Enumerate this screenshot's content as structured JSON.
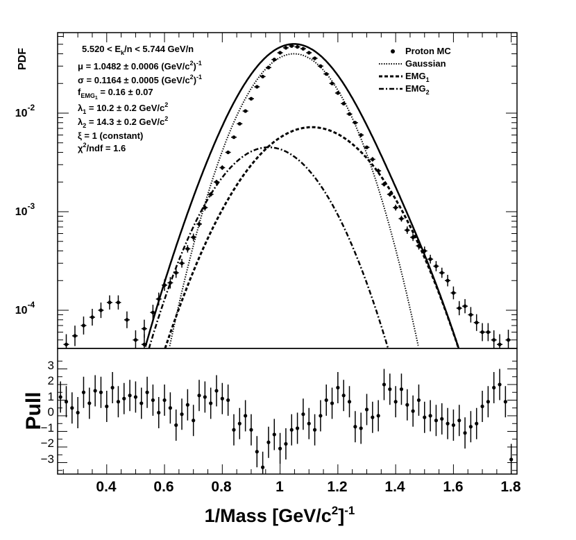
{
  "chart_data": [
    {
      "type": "scatter",
      "title": "",
      "ylabel": "PDF",
      "yscale": "log",
      "ylim": [
        4e-05,
        0.06
      ],
      "xlim": [
        0.23,
        1.82
      ],
      "y_ticks": [
        {
          "mantissa": "10",
          "exp": "-2",
          "value": 0.01
        },
        {
          "mantissa": "10",
          "exp": "-3",
          "value": 0.001
        },
        {
          "mantissa": "10",
          "exp": "-4",
          "value": 0.0001
        }
      ],
      "params": [
        {
          "pre": "5.520 < E",
          "sub": "k",
          "post": "/n < 5.744 GeV/n"
        },
        {
          "pre": "μ = 1.0482 ± 0.0006 (GeV/c",
          "sup": "2",
          "post": ")",
          "sup2": "-1"
        },
        {
          "pre": "σ = 0.1164 ± 0.0005 (GeV/c",
          "sup": "2",
          "post": ")",
          "sup2": "-1"
        },
        {
          "pre": "f",
          "sub": "EMG",
          "subsub": "1",
          "post": " = 0.16 ± 0.07"
        },
        {
          "pre": "λ",
          "sub": "1",
          "post": " = 10.2 ± 0.2 GeV/c",
          "sup2": "2"
        },
        {
          "pre": "λ",
          "sub": "2",
          "post": " = 14.3 ± 0.2 GeV/c",
          "sup2": "2"
        },
        {
          "pre": "ξ = 1 (constant)"
        },
        {
          "pre": "χ",
          "sup": "2",
          "post": "/ndf = 1.6"
        }
      ],
      "legend": {
        "placement": "top-right",
        "entries": [
          {
            "label": "Proton MC",
            "style": "marker"
          },
          {
            "label": "Gaussian",
            "style": "dotted"
          },
          {
            "label": "EMG",
            "sub": "1",
            "style": "dashed"
          },
          {
            "label": "EMG",
            "sub": "2",
            "style": "dashdot"
          }
        ]
      },
      "model": {
        "mu": 1.0482,
        "sigma": 0.1164,
        "gaussian_peak": 0.04,
        "emg1_peak": 0.0072,
        "emg1_center": 1.11,
        "emg1_width": 0.158,
        "emg2_peak": 0.0045,
        "emg2_center": 0.96,
        "emg2_width": 0.135
      },
      "series": [
        {
          "name": "Proton MC",
          "points": [
            {
              "x": 0.26,
              "y": 4.5e-05,
              "err": 0.15
            },
            {
              "x": 0.29,
              "y": 5.5e-05,
              "err": 0.15
            },
            {
              "x": 0.32,
              "y": 7e-05,
              "err": 0.13
            },
            {
              "x": 0.35,
              "y": 8.5e-05,
              "err": 0.12
            },
            {
              "x": 0.38,
              "y": 0.0001,
              "err": 0.11
            },
            {
              "x": 0.41,
              "y": 0.00012,
              "err": 0.1
            },
            {
              "x": 0.44,
              "y": 0.00012,
              "err": 0.1
            },
            {
              "x": 0.47,
              "y": 8e-05,
              "err": 0.12
            },
            {
              "x": 0.5,
              "y": 5e-05,
              "err": 0.14
            },
            {
              "x": 0.53,
              "y": 4.5e-05,
              "err": 0.15
            },
            {
              "x": 0.53,
              "y": 6.5e-05,
              "err": 0.13
            },
            {
              "x": 0.56,
              "y": 9.5e-05,
              "err": 0.11
            },
            {
              "x": 0.58,
              "y": 0.00013,
              "err": 0.09
            },
            {
              "x": 0.6,
              "y": 0.00018,
              "err": 0.08
            },
            {
              "x": 0.62,
              "y": 0.00019,
              "err": 0.08
            },
            {
              "x": 0.64,
              "y": 0.00024,
              "err": 0.07
            },
            {
              "x": 0.66,
              "y": 0.0003,
              "err": 0.06
            },
            {
              "x": 0.68,
              "y": 0.00042,
              "err": 0.05
            },
            {
              "x": 0.7,
              "y": 0.00055,
              "err": 0.05
            },
            {
              "x": 0.72,
              "y": 0.00075,
              "err": 0.04
            },
            {
              "x": 0.74,
              "y": 0.0011,
              "err": 0.04
            },
            {
              "x": 0.76,
              "y": 0.0015,
              "err": 0.03
            },
            {
              "x": 0.78,
              "y": 0.002,
              "err": 0.03
            },
            {
              "x": 0.8,
              "y": 0.0028,
              "err": 0.03
            },
            {
              "x": 0.82,
              "y": 0.004,
              "err": 0.02
            },
            {
              "x": 0.84,
              "y": 0.0057,
              "err": 0.02
            },
            {
              "x": 0.86,
              "y": 0.0078,
              "err": 0.02
            },
            {
              "x": 0.88,
              "y": 0.0105,
              "err": 0.02
            },
            {
              "x": 0.9,
              "y": 0.014,
              "err": 0.02
            },
            {
              "x": 0.92,
              "y": 0.0185,
              "err": 0.02
            },
            {
              "x": 0.94,
              "y": 0.0235,
              "err": 0.02
            },
            {
              "x": 0.96,
              "y": 0.029,
              "err": 0.02
            },
            {
              "x": 0.98,
              "y": 0.035,
              "err": 0.02
            },
            {
              "x": 1.0,
              "y": 0.041,
              "err": 0.02
            },
            {
              "x": 1.02,
              "y": 0.046,
              "err": 0.02
            },
            {
              "x": 1.04,
              "y": 0.048,
              "err": 0.02
            },
            {
              "x": 1.06,
              "y": 0.047,
              "err": 0.02
            },
            {
              "x": 1.08,
              "y": 0.045,
              "err": 0.02
            },
            {
              "x": 1.1,
              "y": 0.041,
              "err": 0.02
            },
            {
              "x": 1.12,
              "y": 0.036,
              "err": 0.02
            },
            {
              "x": 1.14,
              "y": 0.03,
              "err": 0.02
            },
            {
              "x": 1.16,
              "y": 0.025,
              "err": 0.02
            },
            {
              "x": 1.18,
              "y": 0.02,
              "err": 0.02
            },
            {
              "x": 1.2,
              "y": 0.016,
              "err": 0.02
            },
            {
              "x": 1.22,
              "y": 0.0125,
              "err": 0.02
            },
            {
              "x": 1.24,
              "y": 0.0098,
              "err": 0.02
            },
            {
              "x": 1.26,
              "y": 0.008,
              "err": 0.02
            },
            {
              "x": 1.28,
              "y": 0.006,
              "err": 0.02
            },
            {
              "x": 1.3,
              "y": 0.0045,
              "err": 0.02
            },
            {
              "x": 1.32,
              "y": 0.0034,
              "err": 0.03
            },
            {
              "x": 1.34,
              "y": 0.0026,
              "err": 0.03
            },
            {
              "x": 1.36,
              "y": 0.0019,
              "err": 0.03
            },
            {
              "x": 1.38,
              "y": 0.0015,
              "err": 0.03
            },
            {
              "x": 1.4,
              "y": 0.0011,
              "err": 0.04
            },
            {
              "x": 1.42,
              "y": 0.00085,
              "err": 0.04
            },
            {
              "x": 1.44,
              "y": 0.00065,
              "err": 0.05
            },
            {
              "x": 1.46,
              "y": 0.00055,
              "err": 0.05
            },
            {
              "x": 1.48,
              "y": 0.00045,
              "err": 0.05
            },
            {
              "x": 1.5,
              "y": 0.0004,
              "err": 0.06
            },
            {
              "x": 1.52,
              "y": 0.00033,
              "err": 0.06
            },
            {
              "x": 1.54,
              "y": 0.00028,
              "err": 0.07
            },
            {
              "x": 1.56,
              "y": 0.00024,
              "err": 0.07
            },
            {
              "x": 1.58,
              "y": 0.0002,
              "err": 0.08
            },
            {
              "x": 1.6,
              "y": 0.00015,
              "err": 0.09
            },
            {
              "x": 1.62,
              "y": 0.000105,
              "err": 0.1
            },
            {
              "x": 1.64,
              "y": 0.00011,
              "err": 0.1
            },
            {
              "x": 1.66,
              "y": 9e-05,
              "err": 0.11
            },
            {
              "x": 1.68,
              "y": 7.5e-05,
              "err": 0.12
            },
            {
              "x": 1.7,
              "y": 6e-05,
              "err": 0.13
            },
            {
              "x": 1.72,
              "y": 6e-05,
              "err": 0.13
            },
            {
              "x": 1.74,
              "y": 5e-05,
              "err": 0.14
            },
            {
              "x": 1.76,
              "y": 4.5e-05,
              "err": 0.15
            },
            {
              "x": 1.79,
              "y": 5e-05,
              "err": 0.15
            }
          ]
        }
      ]
    },
    {
      "type": "scatter",
      "title": "",
      "xlabel": "1/Mass [GeV/c",
      "xlabel_sup": "2",
      "xlabel_post": "]",
      "xlabel_sup2": "-1",
      "ylabel": "Pull",
      "xlim": [
        0.23,
        1.82
      ],
      "ylim": [
        -3.9,
        3.9
      ],
      "x_ticks": [
        "0.4",
        "0.6",
        "0.8",
        "1",
        "1.2",
        "1.4",
        "1.6",
        "1.8"
      ],
      "y_ticks": [
        "3",
        "2",
        "1",
        "0",
        "−1",
        "−2",
        "−3"
      ],
      "series": [
        {
          "name": "Pull",
          "points": [
            {
              "x": 0.24,
              "y": 1.2
            },
            {
              "x": 0.26,
              "y": 0.9
            },
            {
              "x": 0.28,
              "y": 0.5
            },
            {
              "x": 0.3,
              "y": 0.2
            },
            {
              "x": 0.32,
              "y": 1.5
            },
            {
              "x": 0.34,
              "y": 0.8
            },
            {
              "x": 0.36,
              "y": 1.6
            },
            {
              "x": 0.38,
              "y": 1.5
            },
            {
              "x": 0.4,
              "y": 0.6
            },
            {
              "x": 0.42,
              "y": 1.8
            },
            {
              "x": 0.44,
              "y": 0.9
            },
            {
              "x": 0.46,
              "y": 1.1
            },
            {
              "x": 0.48,
              "y": 1.3
            },
            {
              "x": 0.5,
              "y": 1.2
            },
            {
              "x": 0.52,
              "y": 0.8
            },
            {
              "x": 0.54,
              "y": 1.5
            },
            {
              "x": 0.56,
              "y": 1.0
            },
            {
              "x": 0.58,
              "y": 0.2
            },
            {
              "x": 0.6,
              "y": 1.0
            },
            {
              "x": 0.62,
              "y": 0.5
            },
            {
              "x": 0.64,
              "y": -0.6
            },
            {
              "x": 0.66,
              "y": 0.1
            },
            {
              "x": 0.68,
              "y": 0.7
            },
            {
              "x": 0.7,
              "y": -0.3
            },
            {
              "x": 0.72,
              "y": 1.3
            },
            {
              "x": 0.74,
              "y": 1.2
            },
            {
              "x": 0.76,
              "y": 0.8
            },
            {
              "x": 0.78,
              "y": 1.6
            },
            {
              "x": 0.8,
              "y": 1.1
            },
            {
              "x": 0.82,
              "y": 1.0
            },
            {
              "x": 0.84,
              "y": -0.9
            },
            {
              "x": 0.86,
              "y": -0.5
            },
            {
              "x": 0.88,
              "y": 0.0
            },
            {
              "x": 0.9,
              "y": -0.9
            },
            {
              "x": 0.92,
              "y": -2.3
            },
            {
              "x": 0.94,
              "y": -3.3
            },
            {
              "x": 0.96,
              "y": -1.7
            },
            {
              "x": 0.98,
              "y": -1.2
            },
            {
              "x": 1.0,
              "y": -2.1
            },
            {
              "x": 1.02,
              "y": -1.8
            },
            {
              "x": 1.04,
              "y": -0.9
            },
            {
              "x": 1.06,
              "y": -0.8
            },
            {
              "x": 1.08,
              "y": 0.1
            },
            {
              "x": 1.1,
              "y": -0.5
            },
            {
              "x": 1.12,
              "y": -0.9
            },
            {
              "x": 1.14,
              "y": 0.0
            },
            {
              "x": 1.16,
              "y": 1.0
            },
            {
              "x": 1.18,
              "y": 0.8
            },
            {
              "x": 1.2,
              "y": 1.8
            },
            {
              "x": 1.22,
              "y": 1.3
            },
            {
              "x": 1.24,
              "y": 0.9
            },
            {
              "x": 1.26,
              "y": -0.7
            },
            {
              "x": 1.28,
              "y": -0.8
            },
            {
              "x": 1.3,
              "y": 0.4
            },
            {
              "x": 1.32,
              "y": -0.1
            },
            {
              "x": 1.34,
              "y": 0.0
            },
            {
              "x": 1.36,
              "y": 2.0
            },
            {
              "x": 1.38,
              "y": 1.7
            },
            {
              "x": 1.4,
              "y": 0.9
            },
            {
              "x": 1.42,
              "y": 1.7
            },
            {
              "x": 1.44,
              "y": 0.7
            },
            {
              "x": 1.46,
              "y": 0.3
            },
            {
              "x": 1.48,
              "y": 1.0
            },
            {
              "x": 1.5,
              "y": -0.1
            },
            {
              "x": 1.52,
              "y": 0.0
            },
            {
              "x": 1.54,
              "y": -0.3
            },
            {
              "x": 1.56,
              "y": -0.2
            },
            {
              "x": 1.58,
              "y": -0.5
            },
            {
              "x": 1.6,
              "y": -0.6
            },
            {
              "x": 1.62,
              "y": -0.3
            },
            {
              "x": 1.64,
              "y": -1.1
            },
            {
              "x": 1.66,
              "y": -0.7
            },
            {
              "x": 1.68,
              "y": -0.5
            },
            {
              "x": 1.7,
              "y": 0.6
            },
            {
              "x": 1.72,
              "y": 0.9
            },
            {
              "x": 1.74,
              "y": 1.8
            },
            {
              "x": 1.76,
              "y": 2.0
            },
            {
              "x": 1.78,
              "y": 0.9
            },
            {
              "x": 1.8,
              "y": -2.8
            }
          ]
        }
      ]
    }
  ]
}
